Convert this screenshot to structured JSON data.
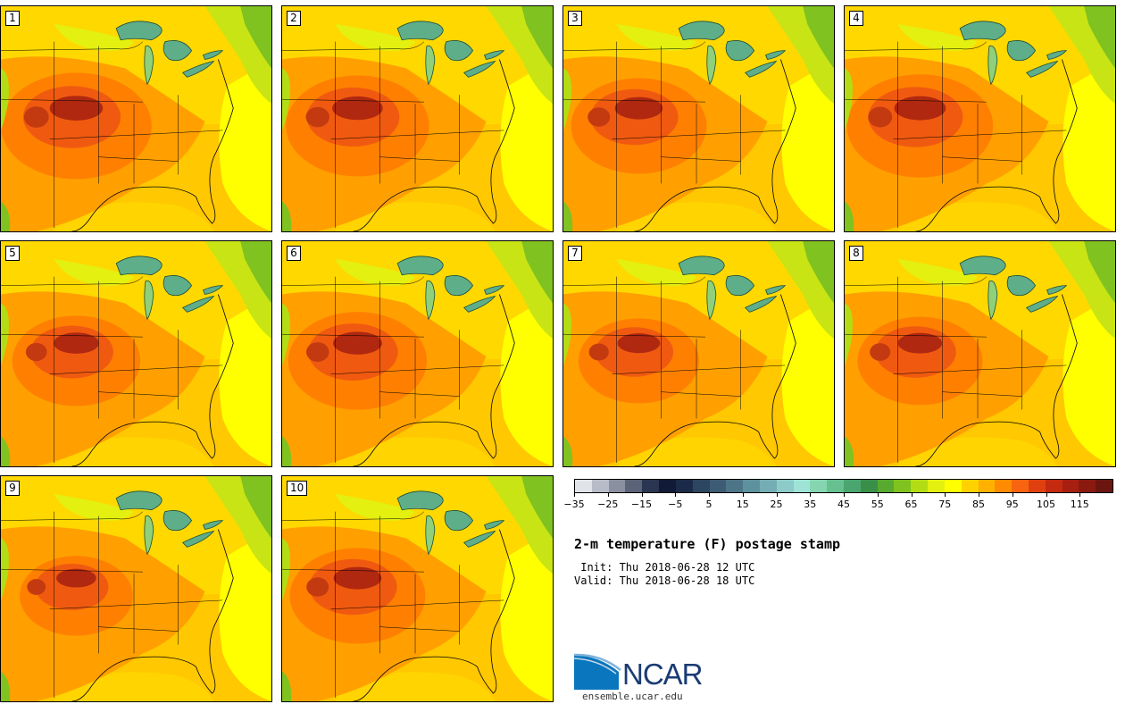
{
  "panels": [
    {
      "label": "1",
      "intensity": 1.0
    },
    {
      "label": "2",
      "intensity": 0.95
    },
    {
      "label": "3",
      "intensity": 0.9
    },
    {
      "label": "4",
      "intensity": 0.97
    },
    {
      "label": "5",
      "intensity": 0.85
    },
    {
      "label": "6",
      "intensity": 0.92
    },
    {
      "label": "7",
      "intensity": 0.8
    },
    {
      "label": "8",
      "intensity": 0.83
    },
    {
      "label": "9",
      "intensity": 0.75
    },
    {
      "label": "10",
      "intensity": 0.9
    }
  ],
  "colorbar": {
    "colors": [
      "#e0e4e8",
      "#b8bcc8",
      "#8a90a0",
      "#5a6378",
      "#2a3552",
      "#111a36",
      "#1b2a48",
      "#2c4560",
      "#3d5c74",
      "#4d7588",
      "#5e919e",
      "#74aeb4",
      "#8ccbc8",
      "#9ee3d6",
      "#85d6b0",
      "#66c08f",
      "#4aa66e",
      "#3a8f48",
      "#57a92f",
      "#80c21f",
      "#b4dc14",
      "#e4f010",
      "#ffff00",
      "#ffd100",
      "#ffb000",
      "#ff8c00",
      "#f86410",
      "#e04010",
      "#c42a10",
      "#a61f10",
      "#8a1a10",
      "#6a1510"
    ],
    "tick_labels": [
      "−35",
      "−25",
      "−15",
      "−5",
      "5",
      "15",
      "25",
      "35",
      "45",
      "55",
      "65",
      "75",
      "85",
      "95",
      "105",
      "115"
    ],
    "min": -35,
    "max": 125
  },
  "title": "2-m temperature (F) postage stamp",
  "init": " Init: Thu 2018-06-28 12 UTC",
  "valid": "Valid: Thu 2018-06-28 18 UTC",
  "logo": {
    "name": "NCAR",
    "url": "ensemble.ucar.edu",
    "accent": "#0a76bd"
  }
}
